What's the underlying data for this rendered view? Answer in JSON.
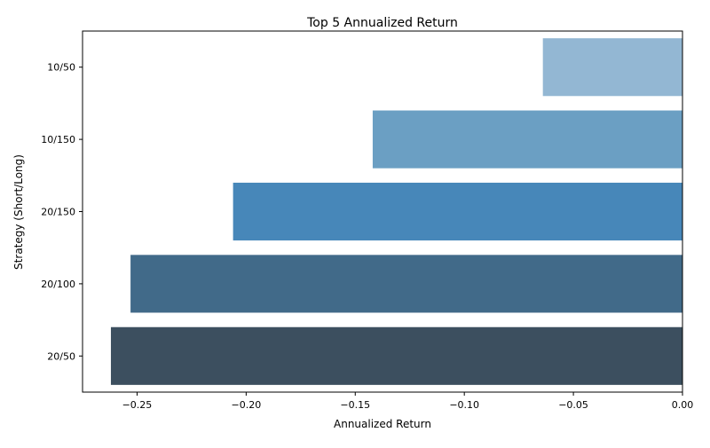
{
  "chart_data": {
    "type": "bar",
    "orientation": "horizontal",
    "title": "Top 5 Annualized Return",
    "xlabel": "Annualized Return",
    "ylabel": "Strategy (Short/Long)",
    "categories": [
      "10/50",
      "10/150",
      "20/150",
      "20/100",
      "20/50"
    ],
    "values": [
      -0.064,
      -0.142,
      -0.206,
      -0.253,
      -0.262
    ],
    "colors": [
      "#93b7d3",
      "#6b9fc3",
      "#4787b9",
      "#416a89",
      "#3c4f5f"
    ],
    "xlim": [
      -0.275,
      0.0
    ],
    "xticks": [
      -0.25,
      -0.2,
      -0.15,
      -0.1,
      -0.05,
      0.0
    ],
    "xtick_labels": [
      "−0.25",
      "−0.20",
      "−0.15",
      "−0.10",
      "−0.05",
      "0.00"
    ],
    "grid": false,
    "legend": "none"
  }
}
